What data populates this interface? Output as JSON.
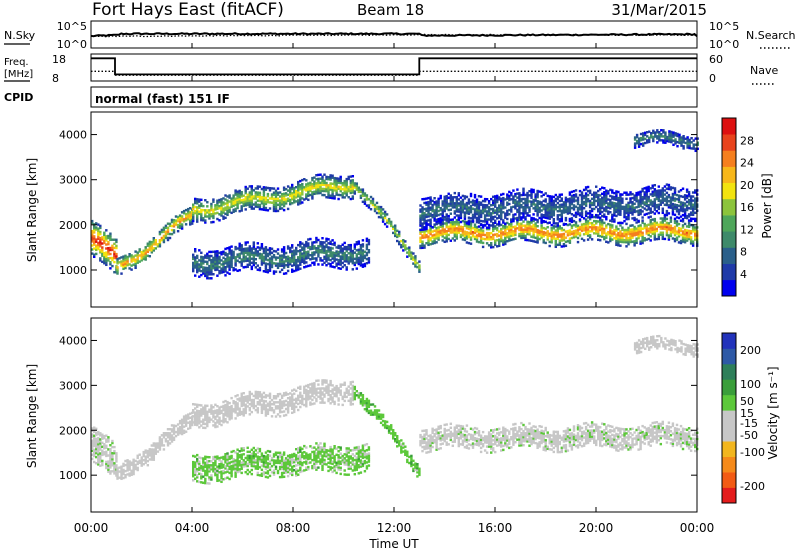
{
  "header": {
    "title": "Fort Hays East (fitACF)",
    "beam": "Beam 18",
    "date": "31/Mar/2015"
  },
  "noise_panel": {
    "left_label": "N.Sky",
    "left_ticks": [
      "10^5",
      "10^0"
    ],
    "right_label": "N.Search",
    "right_ticks": [
      "10^5",
      "10^0"
    ],
    "right_legend_line": "dotted"
  },
  "freq_panel": {
    "left_label_top": "Freq.",
    "left_label_bottom": "[MHz]",
    "left_ticks": [
      "18",
      "8"
    ],
    "right_label": "Nave",
    "right_ticks": [
      "60",
      "0"
    ],
    "right_legend_line": "dotted"
  },
  "cpid_panel": {
    "label": "CPID",
    "program": "normal (fast) 151 IF"
  },
  "colors": {
    "power": [
      "#0000ee",
      "#1f3aa8",
      "#2a5f8a",
      "#3e8a6a",
      "#4ea65a",
      "#8cc43c",
      "#f2e30f",
      "#f7b71a",
      "#f57f1e",
      "#e8431c",
      "#dd1010"
    ],
    "velocity": [
      "#2233bb",
      "#2e59a6",
      "#2e7f5a",
      "#3a9e3a",
      "#5cc83a",
      "#c7c7c7",
      "#c7c7c7",
      "#f2b61e",
      "#f58a1a",
      "#f25b14",
      "#e41c1c"
    ]
  },
  "chart_data": [
    {
      "type": "line",
      "name": "noise",
      "x_range_hours": [
        0,
        24
      ],
      "y_scale": "log",
      "series": [
        {
          "name": "N.Sky",
          "style": "solid",
          "values": [
            [
              0,
              2.5
            ],
            [
              1,
              2.7
            ],
            [
              1.2,
              3.0
            ],
            [
              13,
              3.0
            ],
            [
              13.1,
              2.6
            ],
            [
              24,
              2.9
            ]
          ]
        },
        {
          "name": "N.Search",
          "style": "dotted",
          "values": [
            [
              0,
              2.4
            ],
            [
              13,
              2.8
            ],
            [
              24,
              2.7
            ]
          ]
        }
      ]
    },
    {
      "type": "line",
      "name": "frequency_and_nave",
      "x_range_hours": [
        0,
        24
      ],
      "series": [
        {
          "name": "Freq. [MHz]",
          "ylim": [
            8,
            18
          ],
          "values": [
            [
              0,
              17
            ],
            [
              0.95,
              17
            ],
            [
              0.95,
              10
            ],
            [
              13,
              10
            ],
            [
              13,
              17
            ],
            [
              24,
              17
            ]
          ]
        },
        {
          "name": "Nave",
          "style": "dotted",
          "ylim": [
            0,
            60
          ],
          "values": [
            [
              0,
              20
            ],
            [
              0.95,
              20
            ],
            [
              0.95,
              10
            ],
            [
              13,
              10
            ],
            [
              13,
              20
            ],
            [
              24,
              20
            ]
          ]
        }
      ]
    },
    {
      "type": "heatmap",
      "name": "power",
      "title": "",
      "xlabel": "",
      "ylabel": "Slant Range [km]",
      "x_range_hours": [
        0,
        24
      ],
      "ylim_km": [
        180,
        4500
      ],
      "y_ticks": [
        1000,
        2000,
        3000,
        4000
      ],
      "colorbar": {
        "label": "Power [dB]",
        "range": [
          0,
          32
        ],
        "ticks": [
          4,
          8,
          12,
          16,
          20,
          24,
          28
        ]
      },
      "bands": [
        {
          "t_start": 0.0,
          "t_end": 1.0,
          "r_center_start": 1700,
          "r_center_end": 1200,
          "width_km": 800,
          "peak_db": 30
        },
        {
          "t_start": 1.0,
          "t_end": 4.0,
          "r_center_start": 1000,
          "r_center_end": 2200,
          "width_km": 400,
          "peak_db": 24
        },
        {
          "t_start": 4.0,
          "t_end": 10.4,
          "r_center_start": 2300,
          "r_center_end": 2900,
          "width_km": 500,
          "peak_db": 20
        },
        {
          "t_start": 10.4,
          "t_end": 13.0,
          "r_center_start": 2900,
          "r_center_end": 1100,
          "width_km": 300,
          "peak_db": 18
        },
        {
          "t_start": 4.0,
          "t_end": 11.0,
          "r_center_start": 1150,
          "r_center_end": 1400,
          "width_km": 600,
          "peak_db": 10
        },
        {
          "t_start": 13.0,
          "t_end": 24.0,
          "r_center_start": 1800,
          "r_center_end": 1850,
          "width_km": 500,
          "peak_db": 26
        },
        {
          "t_start": 13.0,
          "t_end": 24.0,
          "r_center_start": 2300,
          "r_center_end": 2500,
          "width_km": 700,
          "peak_db": 8
        },
        {
          "t_start": 21.5,
          "t_end": 24.0,
          "r_center_start": 3900,
          "r_center_end": 3850,
          "width_km": 300,
          "peak_db": 10
        }
      ]
    },
    {
      "type": "heatmap",
      "name": "velocity",
      "title": "",
      "xlabel": "Time UT",
      "ylabel": "Slant Range [km]",
      "x_range_hours": [
        0,
        24
      ],
      "x_ticks": [
        "00:00",
        "04:00",
        "08:00",
        "12:00",
        "16:00",
        "20:00",
        "00:00"
      ],
      "ylim_km": [
        180,
        4500
      ],
      "y_ticks": [
        1000,
        2000,
        3000,
        4000
      ],
      "colorbar": {
        "label": "Velocity [m s⁻¹]",
        "range": [
          -250,
          250
        ],
        "ticks": [
          200,
          100,
          50,
          15,
          -15,
          -50,
          -100,
          -200
        ]
      },
      "bands": [
        {
          "t_start": 0.0,
          "t_end": 1.0,
          "r_center_start": 1700,
          "r_center_end": 1200,
          "width_km": 800,
          "velocity": 0
        },
        {
          "t_start": 1.0,
          "t_end": 4.0,
          "r_center_start": 1000,
          "r_center_end": 2200,
          "width_km": 400,
          "velocity": -30
        },
        {
          "t_start": 4.0,
          "t_end": 10.4,
          "r_center_start": 2300,
          "r_center_end": 2900,
          "width_km": 500,
          "velocity": -10
        },
        {
          "t_start": 10.4,
          "t_end": 13.0,
          "r_center_start": 2900,
          "r_center_end": 1100,
          "width_km": 300,
          "velocity": 50
        },
        {
          "t_start": 4.0,
          "t_end": 11.0,
          "r_center_start": 1150,
          "r_center_end": 1400,
          "width_km": 600,
          "velocity": 40
        },
        {
          "t_start": 13.0,
          "t_end": 24.0,
          "r_center_start": 1800,
          "r_center_end": 1850,
          "width_km": 500,
          "velocity": 0
        },
        {
          "t_start": 21.5,
          "t_end": 24.0,
          "r_center_start": 3900,
          "r_center_end": 3850,
          "width_km": 300,
          "velocity": -20
        }
      ]
    }
  ]
}
